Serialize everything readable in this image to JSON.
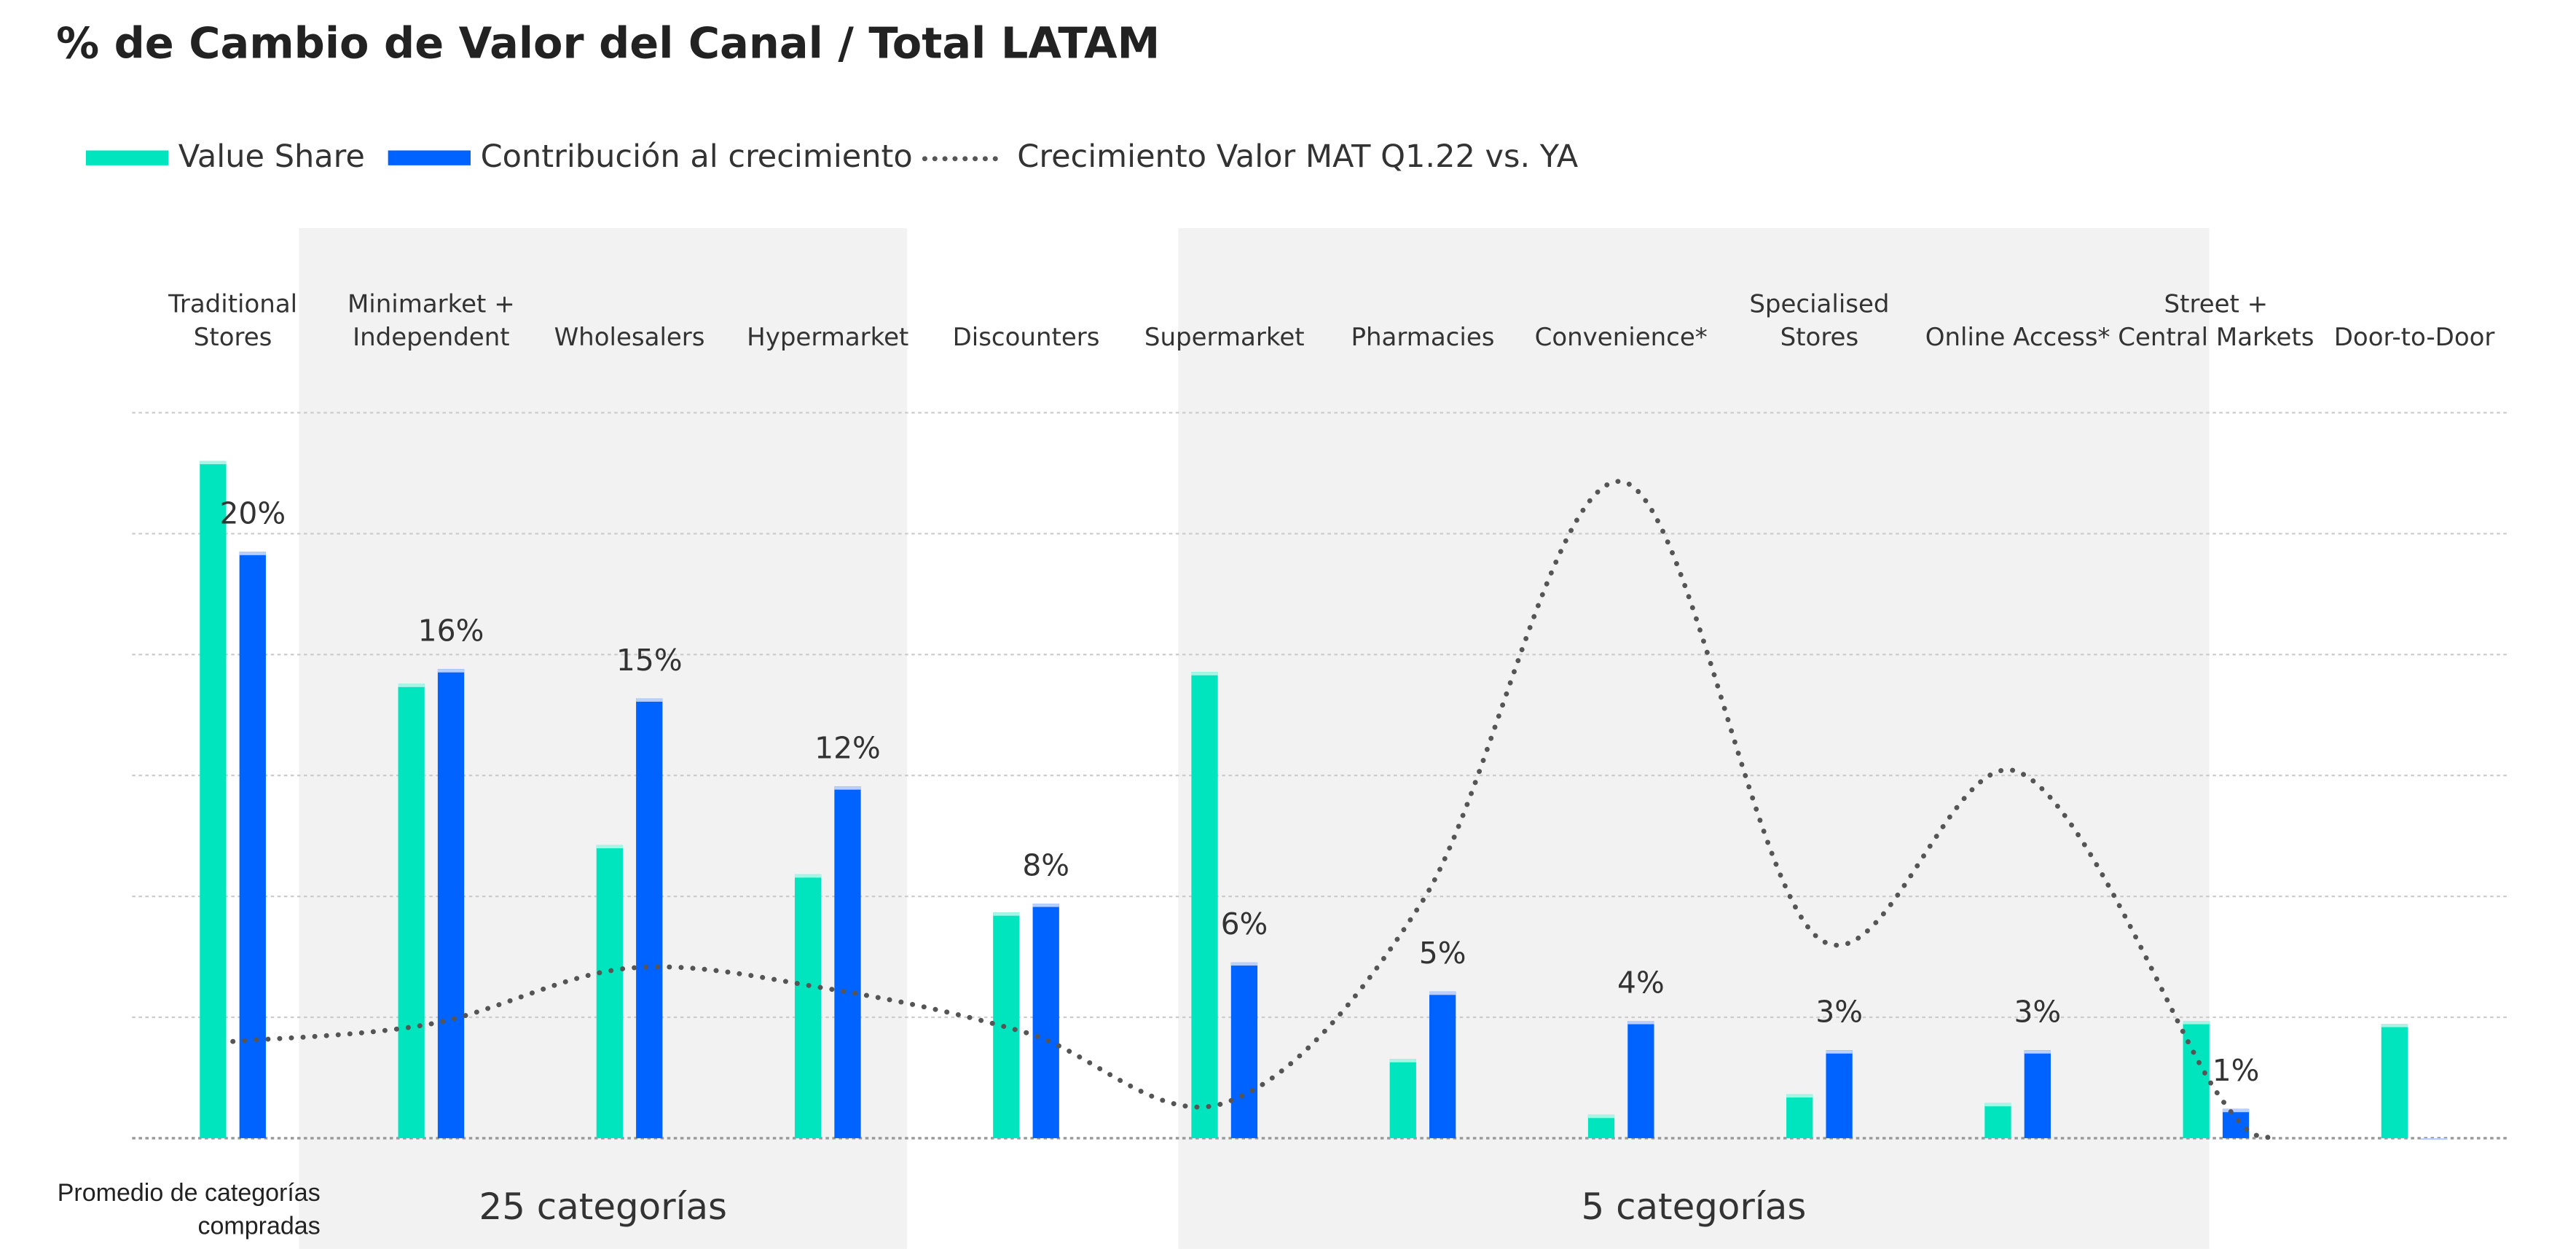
{
  "chart_data": {
    "type": "bar",
    "title": "% de Cambio de Valor del Canal / Total LATAM",
    "legend_placement": "top-left",
    "grid": true,
    "categories": [
      [
        "Traditional",
        "Stores"
      ],
      [
        "Minimarket +",
        "Independent"
      ],
      [
        "",
        "Wholesalers"
      ],
      [
        "",
        "Hypermarket"
      ],
      [
        "",
        "Discounters"
      ],
      [
        "",
        "Supermarket"
      ],
      [
        "",
        "Pharmacies"
      ],
      [
        "",
        "Convenience*"
      ],
      [
        "Specialised",
        "Stores"
      ],
      [
        "",
        "Online Access*"
      ],
      [
        "Street +",
        "Central Markets"
      ],
      [
        "",
        "Door-to-Door"
      ]
    ],
    "series": [
      {
        "name": "Value Share",
        "kind": "bar",
        "color": "#00E5BE",
        "values": [
          23.1,
          15.5,
          10.0,
          9.0,
          7.7,
          15.9,
          2.7,
          0.8,
          1.5,
          1.2,
          4.0,
          3.9
        ]
      },
      {
        "name": "Contribución al crecimiento",
        "kind": "bar",
        "color": "#0062FF",
        "values": [
          20,
          16,
          15,
          12,
          8,
          6,
          5,
          4,
          3,
          3,
          1,
          0
        ],
        "labels": [
          "20%",
          "16%",
          "15%",
          "12%",
          "8%",
          "6%",
          "5%",
          "4%",
          "3%",
          "3%",
          "1%",
          ""
        ]
      },
      {
        "name": "Crecimiento Valor MAT Q1.22 vs. YA",
        "kind": "dotted-line",
        "color": "#555555",
        "values": [
          3.3,
          3.9,
          5.8,
          5.1,
          3.6,
          1.2,
          8.1,
          22.4,
          6.8,
          12.5,
          1.6,
          null
        ]
      }
    ],
    "ylim": [
      0,
      25
    ],
    "groups": [
      {
        "label": "25 categorías",
        "from": 1,
        "to": 3
      },
      {
        "label": "5 categorías",
        "from": 5,
        "to": 9
      }
    ],
    "row_label": [
      "Promedio de categorías",
      "compradas"
    ]
  }
}
